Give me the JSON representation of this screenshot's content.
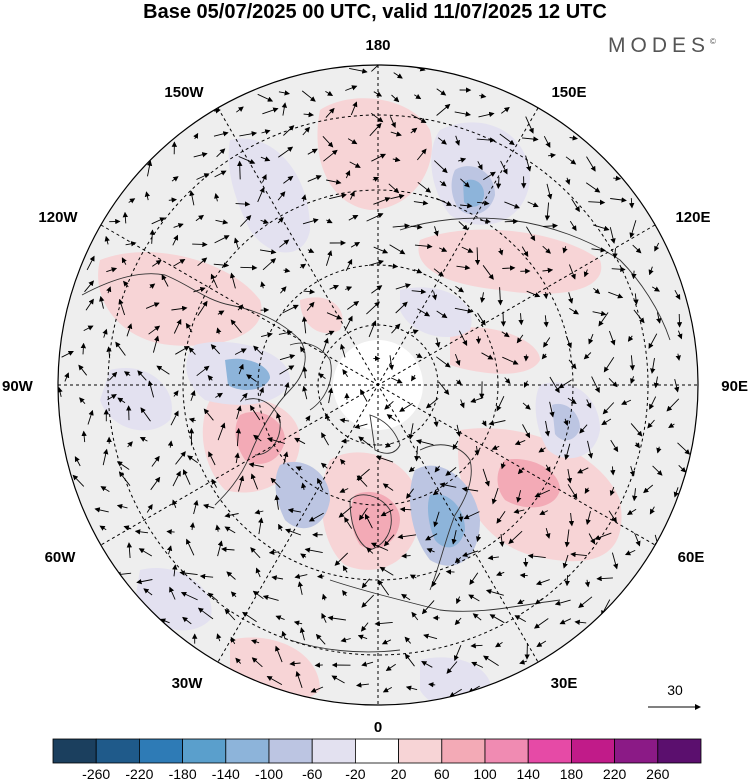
{
  "title": "Base 05/07/2025 00 UTC, valid 11/07/2025 12 UTC",
  "brand": "MODES",
  "brand_mark": "©",
  "longitude_labels": {
    "n": "180",
    "s": "0",
    "w": "90W",
    "e": "90E",
    "nw1": "150W",
    "nw2": "120W",
    "ne1": "150E",
    "ne2": "120E",
    "sw1": "60W",
    "sw2": "30W",
    "se1": "60E",
    "se2": "30E"
  },
  "reference_vector": {
    "label": "30"
  },
  "colorbar": {
    "ticks": [
      "-260",
      "-220",
      "-180",
      "-140",
      "-100",
      "-60",
      "-20",
      "20",
      "60",
      "100",
      "140",
      "180",
      "220",
      "260"
    ],
    "colors": [
      "#1b3f5e",
      "#1f5a8a",
      "#2e7bb6",
      "#5a9fcc",
      "#8db4da",
      "#bcc5e2",
      "#e3e1f0",
      "#ffffff",
      "#f7d4d6",
      "#f3aab6",
      "#f08bb2",
      "#e64aa6",
      "#c11b89",
      "#8b1a86",
      "#5b0f6e"
    ]
  }
}
